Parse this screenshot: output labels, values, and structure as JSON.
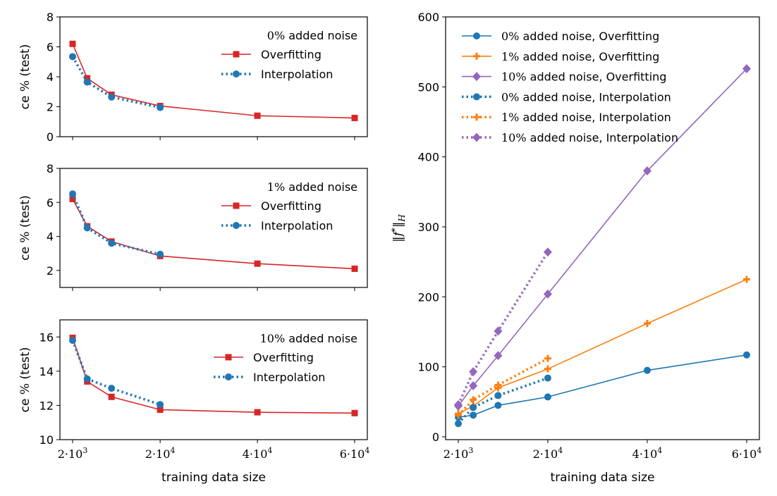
{
  "colors": {
    "red": "#d62728",
    "blue": "#1f77b4",
    "orange": "#ff7f0e",
    "purple": "#9467bd"
  },
  "chart_data": [
    {
      "type": "line",
      "title": "",
      "xlabel": "",
      "ylabel": "ce % (test)",
      "legend_title": "0% added noise",
      "legend_position": "upper-right",
      "xlim": [
        0,
        62000
      ],
      "ylim": [
        0,
        8
      ],
      "yticks": [
        "0",
        "2",
        "4",
        "6",
        "8"
      ],
      "series": [
        {
          "name": "Overfitting",
          "style": "solid",
          "marker": "square",
          "color": "#d62728",
          "x": [
            2000,
            5000,
            10000,
            20000,
            40000,
            60000
          ],
          "y": [
            6.2,
            3.9,
            2.8,
            2.05,
            1.4,
            1.25
          ]
        },
        {
          "name": "Interpolation",
          "style": "dotted",
          "marker": "circle",
          "color": "#1f77b4",
          "x": [
            2000,
            5000,
            10000,
            20000
          ],
          "y": [
            5.35,
            3.65,
            2.65,
            1.95
          ]
        }
      ]
    },
    {
      "type": "line",
      "title": "",
      "xlabel": "",
      "ylabel": "ce % (test)",
      "legend_title": "1% added noise",
      "legend_position": "upper-right",
      "xlim": [
        0,
        62000
      ],
      "ylim": [
        1,
        8
      ],
      "yticks": [
        "2",
        "4",
        "6",
        "8"
      ],
      "series": [
        {
          "name": "Overfitting",
          "style": "solid",
          "marker": "square",
          "color": "#d62728",
          "x": [
            2000,
            5000,
            10000,
            20000,
            40000,
            60000
          ],
          "y": [
            6.2,
            4.6,
            3.7,
            2.85,
            2.4,
            2.1
          ]
        },
        {
          "name": "Interpolation",
          "style": "dotted",
          "marker": "circle",
          "color": "#1f77b4",
          "x": [
            2000,
            5000,
            10000,
            20000
          ],
          "y": [
            6.5,
            4.5,
            3.6,
            2.95
          ]
        }
      ]
    },
    {
      "type": "line",
      "title": "",
      "xlabel": "training data size",
      "ylabel": "ce % (test)",
      "legend_title": "10% added noise",
      "legend_position": "upper-right",
      "xlim": [
        0,
        62000
      ],
      "ylim": [
        10,
        17
      ],
      "yticks": [
        "10",
        "12",
        "14",
        "16"
      ],
      "xticks": [
        "2·10³",
        "2·10⁴",
        "4·10⁴",
        "6·10⁴"
      ],
      "series": [
        {
          "name": "Overfitting",
          "style": "solid",
          "marker": "square",
          "color": "#d62728",
          "x": [
            2000,
            5000,
            10000,
            20000,
            40000,
            60000
          ],
          "y": [
            15.95,
            13.4,
            12.5,
            11.75,
            11.6,
            11.55
          ]
        },
        {
          "name": "Interpolation",
          "style": "dotted",
          "marker": "circle",
          "color": "#1f77b4",
          "x": [
            2000,
            5000,
            10000,
            20000
          ],
          "y": [
            15.8,
            13.55,
            13.0,
            12.05
          ]
        }
      ]
    },
    {
      "type": "line",
      "title": "",
      "xlabel": "training data size",
      "ylabel": "‖f*‖H",
      "legend_position": "upper-left",
      "xlim": [
        0,
        62000
      ],
      "ylim": [
        -4,
        600
      ],
      "yticks": [
        "0",
        "100",
        "200",
        "300",
        "400",
        "500",
        "600"
      ],
      "xticks": [
        "2·10³",
        "2·10⁴",
        "4·10⁴",
        "6·10⁴"
      ],
      "series": [
        {
          "name": "0% added noise, Overfitting",
          "style": "solid",
          "marker": "circle",
          "color": "#1f77b4",
          "x": [
            2000,
            5000,
            10000,
            20000,
            40000,
            60000
          ],
          "y": [
            28,
            31,
            45,
            57,
            95,
            117
          ]
        },
        {
          "name": "1% added noise, Overfitting",
          "style": "solid",
          "marker": "plus",
          "color": "#ff7f0e",
          "x": [
            2000,
            5000,
            10000,
            20000,
            40000,
            60000
          ],
          "y": [
            33,
            44,
            70,
            97,
            162,
            225
          ]
        },
        {
          "name": "10% added noise, Overfitting",
          "style": "solid",
          "marker": "diamond",
          "color": "#9467bd",
          "x": [
            2000,
            5000,
            10000,
            20000,
            40000,
            60000
          ],
          "y": [
            44,
            73,
            116,
            204,
            380,
            526
          ]
        },
        {
          "name": "0% added noise, Interpolation",
          "style": "dotted",
          "marker": "circle",
          "color": "#1f77b4",
          "x": [
            2000,
            5000,
            10000,
            20000
          ],
          "y": [
            19,
            42,
            59,
            84
          ]
        },
        {
          "name": "1% added noise, Interpolation",
          "style": "dotted",
          "marker": "plus",
          "color": "#ff7f0e",
          "x": [
            2000,
            5000,
            10000,
            20000
          ],
          "y": [
            31,
            53,
            74,
            112
          ]
        },
        {
          "name": "10% added noise, Interpolation",
          "style": "dotted",
          "marker": "diamond",
          "color": "#9467bd",
          "x": [
            2000,
            5000,
            10000,
            20000
          ],
          "y": [
            46,
            93,
            151,
            264
          ]
        }
      ]
    }
  ]
}
